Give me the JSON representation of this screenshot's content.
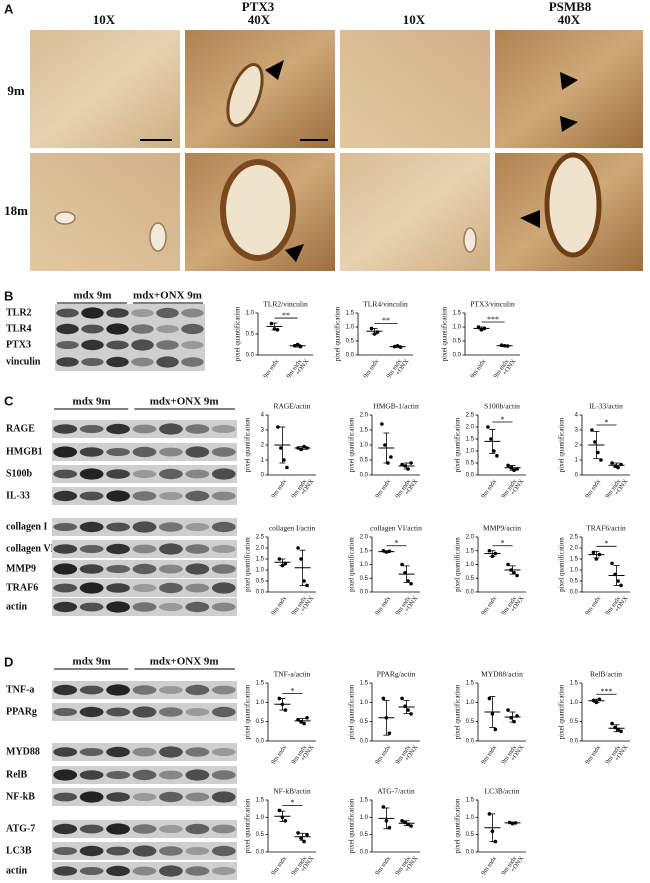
{
  "panel_a": {
    "label": "A",
    "markers": [
      "PTX3",
      "PSMB8"
    ],
    "magnifications": [
      "10X",
      "40X",
      "10X",
      "40X"
    ],
    "rows": [
      "9m",
      "18m"
    ]
  },
  "labels": {
    "y_label": "pixel quantification",
    "x_labels": [
      "9m mdx",
      "+ONX"
    ]
  },
  "panel_b": {
    "label": "B",
    "groups": [
      "mdx 9m",
      "mdx+ONX 9m"
    ],
    "rows": [
      "TLR2",
      "TLR4",
      "PTX3",
      "vinculin"
    ],
    "plots": [
      {
        "title": "TLR2/vinculin",
        "ylim": [
          0,
          1
        ],
        "yticks": [
          {
            "value": 0,
            "label": "0.0"
          },
          0.5,
          {
            "value": 1,
            "label": "1.0"
          }
        ],
        "sig": "**",
        "mdx": {
          "points": [
            0.75,
            0.62,
            0.6
          ],
          "mean": 0.68,
          "sd": 0.08
        },
        "onx": {
          "points": [
            0.22,
            0.25,
            0.2
          ],
          "mean": 0.22,
          "sd": 0.03
        }
      },
      {
        "title": "TLR4/vinculin",
        "ylim": [
          0,
          1.5
        ],
        "yticks": [
          {
            "value": 0,
            "label": "0.0"
          },
          0.5,
          {
            "value": 1,
            "label": "1.0"
          },
          1.5
        ],
        "sig": "**",
        "mdx": {
          "points": [
            0.95,
            0.75,
            0.82
          ],
          "mean": 0.85,
          "sd": 0.1
        },
        "onx": {
          "points": [
            0.3,
            0.33,
            0.28
          ],
          "mean": 0.3,
          "sd": 0.03
        }
      },
      {
        "title": "PTX3/vinculin",
        "ylim": [
          0,
          1.5
        ],
        "yticks": [
          {
            "value": 0,
            "label": "0.0"
          },
          0.5,
          {
            "value": 1,
            "label": "1.0"
          },
          1.5
        ],
        "sig": "***",
        "mdx": {
          "points": [
            1.0,
            0.9,
            0.95
          ],
          "mean": 0.95,
          "sd": 0.05
        },
        "onx": {
          "points": [
            0.35,
            0.33,
            0.32
          ],
          "mean": 0.33,
          "sd": 0.02
        }
      }
    ]
  },
  "panel_c": {
    "label": "C",
    "groups": [
      "mdx 9m",
      "mdx+ONX 9m"
    ],
    "rows": [
      "RAGE",
      "HMGB1",
      "S100b",
      "IL-33",
      "collagen I",
      "collagen VI",
      "MMP9",
      "TRAF6",
      "actin"
    ],
    "plots": [
      {
        "title": "RAGE/actin",
        "ylim": [
          0,
          4
        ],
        "yticks": [
          0,
          1,
          2,
          3,
          4
        ],
        "mdx": {
          "points": [
            3.2,
            1.8,
            1.0,
            0.5
          ],
          "mean": 2.0,
          "sd": 1.2
        },
        "onx": {
          "points": [
            1.8,
            1.7,
            1.9,
            1.8
          ],
          "mean": 1.8,
          "sd": 0.1
        }
      },
      {
        "title": "HMGB-1/actin",
        "ylim": [
          0,
          2
        ],
        "yticks": [
          {
            "value": 0,
            "label": "0.0"
          },
          0.5,
          {
            "value": 1,
            "label": "1.0"
          },
          1.5,
          {
            "value": 2,
            "label": "2.0"
          }
        ],
        "mdx": {
          "points": [
            1.7,
            1.0,
            0.4,
            0.6
          ],
          "mean": 0.9,
          "sd": 0.5
        },
        "onx": {
          "points": [
            0.35,
            0.3,
            0.2,
            0.4
          ],
          "mean": 0.3,
          "sd": 0.1
        }
      },
      {
        "title": "S100b/actin",
        "ylim": [
          0,
          2.5
        ],
        "yticks": [
          {
            "value": 0,
            "label": "0.0"
          },
          0.5,
          {
            "value": 1,
            "label": "1.0"
          },
          1.5,
          {
            "value": 2,
            "label": "2.0"
          },
          2.5
        ],
        "sig": "*",
        "mdx": {
          "points": [
            2.0,
            1.5,
            1.0,
            0.8
          ],
          "mean": 1.4,
          "sd": 0.5
        },
        "onx": {
          "points": [
            0.4,
            0.3,
            0.2,
            0.25
          ],
          "mean": 0.3,
          "sd": 0.1
        }
      },
      {
        "title": "IL-33/actin",
        "ylim": [
          0,
          4
        ],
        "yticks": [
          0,
          1,
          2,
          3,
          4
        ],
        "sig": "*",
        "mdx": {
          "points": [
            3.0,
            2.2,
            1.5,
            1.0
          ],
          "mean": 2.0,
          "sd": 0.9
        },
        "onx": {
          "points": [
            0.8,
            0.6,
            0.5,
            0.7
          ],
          "mean": 0.65,
          "sd": 0.15
        }
      },
      {
        "title": "collagen I/actin",
        "ylim": [
          0,
          2.5
        ],
        "yticks": [
          {
            "value": 0,
            "label": "0.0"
          },
          0.5,
          {
            "value": 1,
            "label": "1.0"
          },
          1.5,
          {
            "value": 2,
            "label": "2.0"
          },
          2.5
        ],
        "mdx": {
          "points": [
            1.5,
            1.2,
            1.3
          ],
          "mean": 1.35,
          "sd": 0.15
        },
        "onx": {
          "points": [
            2.0,
            1.5,
            0.5,
            0.3
          ],
          "mean": 1.1,
          "sd": 0.8
        }
      },
      {
        "title": "collagen VI/actin",
        "ylim": [
          0,
          2
        ],
        "yticks": [
          {
            "value": 0,
            "label": "0.0"
          },
          0.5,
          {
            "value": 1,
            "label": "1.0"
          },
          1.5,
          {
            "value": 2,
            "label": "2.0"
          }
        ],
        "sig": "*",
        "mdx": {
          "points": [
            1.5,
            1.45,
            1.48
          ],
          "mean": 1.47,
          "sd": 0.03
        },
        "onx": {
          "points": [
            1.0,
            0.7,
            0.4,
            0.3
          ],
          "mean": 0.65,
          "sd": 0.3
        }
      },
      {
        "title": "MMP9/actin",
        "ylim": [
          0,
          2
        ],
        "yticks": [
          {
            "value": 0,
            "label": "0.0"
          },
          0.5,
          {
            "value": 1,
            "label": "1.0"
          },
          1.5,
          {
            "value": 2,
            "label": "2.0"
          }
        ],
        "sig": "*",
        "mdx": {
          "points": [
            1.5,
            1.3,
            1.4
          ],
          "mean": 1.4,
          "sd": 0.1
        },
        "onx": {
          "points": [
            1.0,
            0.8,
            0.7,
            0.6
          ],
          "mean": 0.8,
          "sd": 0.15
        }
      },
      {
        "title": "TRAF6/actin",
        "ylim": [
          0,
          2.5
        ],
        "yticks": [
          {
            "value": 0,
            "label": "0.0"
          },
          0.5,
          {
            "value": 1,
            "label": "1.0"
          },
          1.5,
          {
            "value": 2,
            "label": "2.0"
          },
          2.5
        ],
        "sig": "*",
        "mdx": {
          "points": [
            1.8,
            1.5,
            1.7
          ],
          "mean": 1.7,
          "sd": 0.15
        },
        "onx": {
          "points": [
            1.3,
            0.8,
            0.5,
            0.3
          ],
          "mean": 0.75,
          "sd": 0.45
        }
      }
    ]
  },
  "panel_d": {
    "label": "D",
    "groups": [
      "mdx 9m",
      "mdx+ONX 9m"
    ],
    "rows": [
      "TNF-a",
      "PPARg",
      "MYD88",
      "RelB",
      "NF-kB",
      "ATG-7",
      "LC3B",
      "actin"
    ],
    "plots": [
      {
        "title": "TNF-a/actin",
        "ylim": [
          0,
          1.5
        ],
        "yticks": [
          {
            "value": 0,
            "label": "0.0"
          },
          0.5,
          {
            "value": 1,
            "label": "1.0"
          },
          1.5
        ],
        "sig": "*",
        "mdx": {
          "points": [
            1.1,
            0.95,
            0.8
          ],
          "mean": 0.95,
          "sd": 0.15
        },
        "onx": {
          "points": [
            0.55,
            0.5,
            0.45,
            0.6
          ],
          "mean": 0.52,
          "sd": 0.06
        }
      },
      {
        "title": "PPARg/actin",
        "ylim": [
          0,
          1.5
        ],
        "yticks": [
          {
            "value": 0,
            "label": "0.0"
          },
          0.5,
          {
            "value": 1,
            "label": "1.0"
          },
          1.5
        ],
        "mdx": {
          "points": [
            1.1,
            0.6,
            0.2
          ],
          "mean": 0.6,
          "sd": 0.45
        },
        "onx": {
          "points": [
            1.1,
            0.9,
            0.8,
            0.7
          ],
          "mean": 0.88,
          "sd": 0.17
        }
      },
      {
        "title": "MYD88/actin",
        "ylim": [
          0,
          1.5
        ],
        "yticks": [
          {
            "value": 0,
            "label": "0.0"
          },
          0.5,
          {
            "value": 1,
            "label": "1.0"
          },
          1.5
        ],
        "mdx": {
          "points": [
            1.1,
            0.7,
            0.3
          ],
          "mean": 0.75,
          "sd": 0.4
        },
        "onx": {
          "points": [
            0.8,
            0.6,
            0.5,
            0.65
          ],
          "mean": 0.62,
          "sd": 0.13
        }
      },
      {
        "title": "RelB/actin",
        "ylim": [
          0,
          1.5
        ],
        "yticks": [
          {
            "value": 0,
            "label": "0.0"
          },
          0.5,
          {
            "value": 1,
            "label": "1.0"
          },
          1.5
        ],
        "sig": "***",
        "mdx": {
          "points": [
            1.05,
            1.0,
            1.08
          ],
          "mean": 1.04,
          "sd": 0.04
        },
        "onx": {
          "points": [
            0.45,
            0.35,
            0.3,
            0.25
          ],
          "mean": 0.33,
          "sd": 0.09
        }
      },
      {
        "title": "NF-kB/actin",
        "ylim": [
          0,
          1.5
        ],
        "yticks": [
          {
            "value": 0,
            "label": "0.0"
          },
          0.5,
          {
            "value": 1,
            "label": "1.0"
          },
          1.5
        ],
        "sig": "*",
        "mdx": {
          "points": [
            1.2,
            1.0,
            0.9
          ],
          "mean": 1.03,
          "sd": 0.15
        },
        "onx": {
          "points": [
            0.55,
            0.4,
            0.3,
            0.5
          ],
          "mean": 0.44,
          "sd": 0.1
        }
      },
      {
        "title": "ATG-7/actin",
        "ylim": [
          0,
          1.5
        ],
        "yticks": [
          {
            "value": 0,
            "label": "0.0"
          },
          0.5,
          {
            "value": 1,
            "label": "1.0"
          },
          1.5
        ],
        "mdx": {
          "points": [
            1.3,
            0.9,
            0.7
          ],
          "mean": 0.97,
          "sd": 0.3
        },
        "onx": {
          "points": [
            0.9,
            0.85,
            0.8,
            0.75
          ],
          "mean": 0.83,
          "sd": 0.07
        }
      },
      {
        "title": "LC3B/actin",
        "ylim": [
          0,
          1.5
        ],
        "yticks": [
          {
            "value": 0,
            "label": "0.0"
          },
          0.5,
          {
            "value": 1,
            "label": "1.0"
          },
          1.5
        ],
        "mdx": {
          "points": [
            1.1,
            0.6,
            0.3
          ],
          "mean": 0.7,
          "sd": 0.4
        },
        "onx": {
          "points": [
            0.85,
            0.82,
            0.84
          ],
          "mean": 0.84,
          "sd": 0.02
        }
      }
    ]
  }
}
